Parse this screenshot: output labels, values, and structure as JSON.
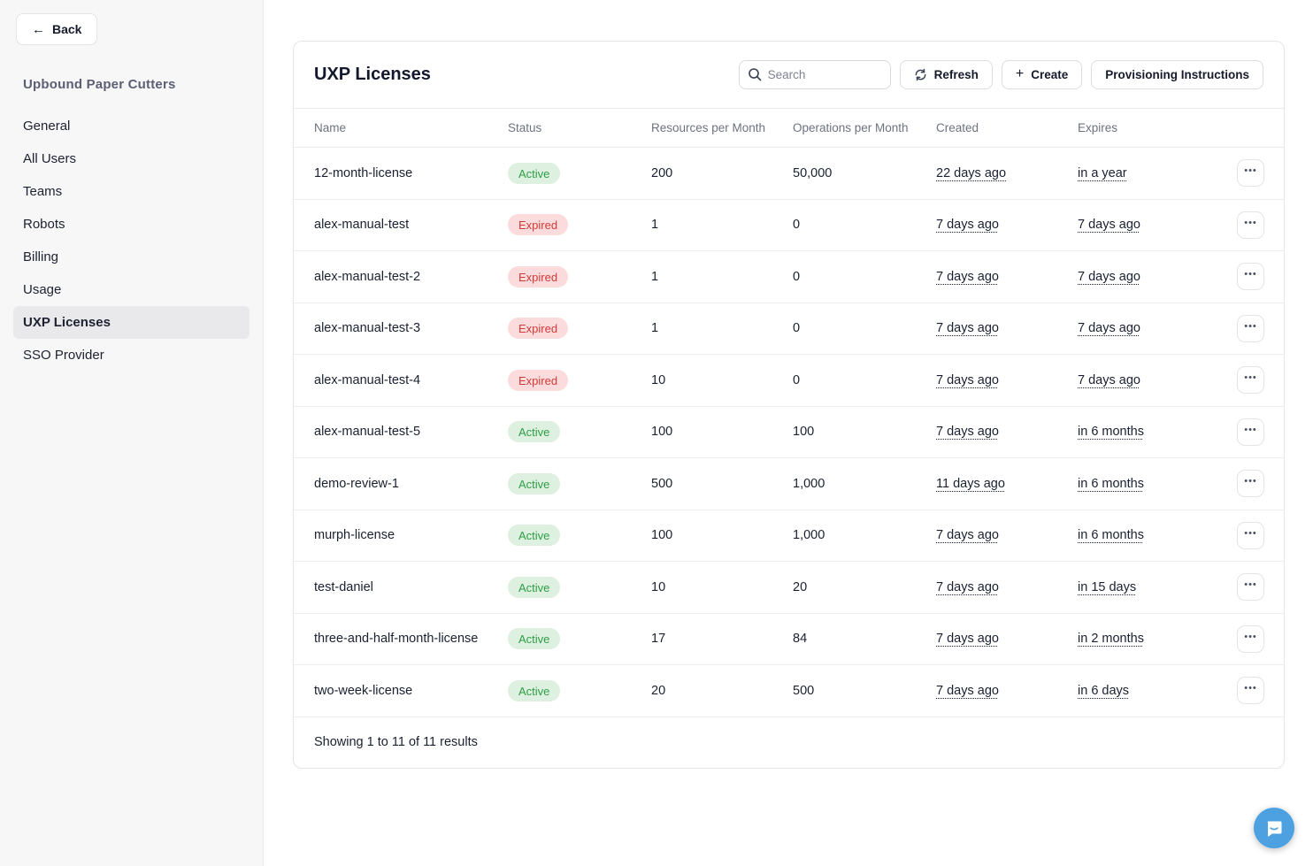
{
  "colors": {
    "active_badge_bg": "#def0df",
    "active_badge_text": "#2f9e47",
    "expired_badge_bg": "#fbdbdb",
    "expired_badge_text": "#d23b38",
    "chat_bubble_blue": "#4da1e0",
    "sidebar_title_text": "#5c5e74",
    "primary_text": "#161a2b",
    "muted_header_text": "#6e7280"
  },
  "sidebar": {
    "back_button": {
      "label": "Back",
      "icon": "left-arrow-icon",
      "arrow_glyph": "←"
    },
    "title": "Upbound Paper Cutters",
    "items": [
      {
        "label": "General",
        "active": false
      },
      {
        "label": "All Users",
        "active": false
      },
      {
        "label": "Teams",
        "active": false
      },
      {
        "label": "Robots",
        "active": false
      },
      {
        "label": "Billing",
        "active": false
      },
      {
        "label": "Usage",
        "active": false
      },
      {
        "label": "UXP Licenses",
        "active": true
      },
      {
        "label": "SSO Provider",
        "active": false
      }
    ]
  },
  "main": {
    "title": "UXP Licenses",
    "toolbar": {
      "search_placeholder": "Search",
      "search_icon": "magnifier-icon",
      "refresh_label": "Refresh",
      "refresh_icon": "refresh-arrows-icon",
      "create_label": "Create",
      "create_icon": "plus-icon",
      "plus_glyph": "+",
      "provisioning_label": "Provisioning Instructions"
    },
    "table": {
      "columns": [
        "Name",
        "Status",
        "Resources per Month",
        "Operations per Month",
        "Created",
        "Expires"
      ],
      "row_menu_icon": "ellipsis-icon",
      "ellipsis_glyph": "•••",
      "rows": [
        {
          "name": "12-month-license",
          "status": "Active",
          "resources": "200",
          "operations": "50,000",
          "created": "22 days ago",
          "expires": "in a year"
        },
        {
          "name": "alex-manual-test",
          "status": "Expired",
          "resources": "1",
          "operations": "0",
          "created": "7 days ago",
          "expires": "7 days ago"
        },
        {
          "name": "alex-manual-test-2",
          "status": "Expired",
          "resources": "1",
          "operations": "0",
          "created": "7 days ago",
          "expires": "7 days ago"
        },
        {
          "name": "alex-manual-test-3",
          "status": "Expired",
          "resources": "1",
          "operations": "0",
          "created": "7 days ago",
          "expires": "7 days ago"
        },
        {
          "name": "alex-manual-test-4",
          "status": "Expired",
          "resources": "10",
          "operations": "0",
          "created": "7 days ago",
          "expires": "7 days ago"
        },
        {
          "name": "alex-manual-test-5",
          "status": "Active",
          "resources": "100",
          "operations": "100",
          "created": "7 days ago",
          "expires": "in 6 months"
        },
        {
          "name": "demo-review-1",
          "status": "Active",
          "resources": "500",
          "operations": "1,000",
          "created": "11 days ago",
          "expires": "in 6 months"
        },
        {
          "name": "murph-license",
          "status": "Active",
          "resources": "100",
          "operations": "1,000",
          "created": "7 days ago",
          "expires": "in 6 months"
        },
        {
          "name": "test-daniel",
          "status": "Active",
          "resources": "10",
          "operations": "20",
          "created": "7 days ago",
          "expires": "in 15 days"
        },
        {
          "name": "three-and-half-month-license",
          "status": "Active",
          "resources": "17",
          "operations": "84",
          "created": "7 days ago",
          "expires": "in 2 months"
        },
        {
          "name": "two-week-license",
          "status": "Active",
          "resources": "20",
          "operations": "500",
          "created": "7 days ago",
          "expires": "in 6 days"
        }
      ],
      "footer_text": "Showing 1 to 11 of 11 results"
    }
  },
  "chat": {
    "icon": "chat-bubble-icon"
  }
}
